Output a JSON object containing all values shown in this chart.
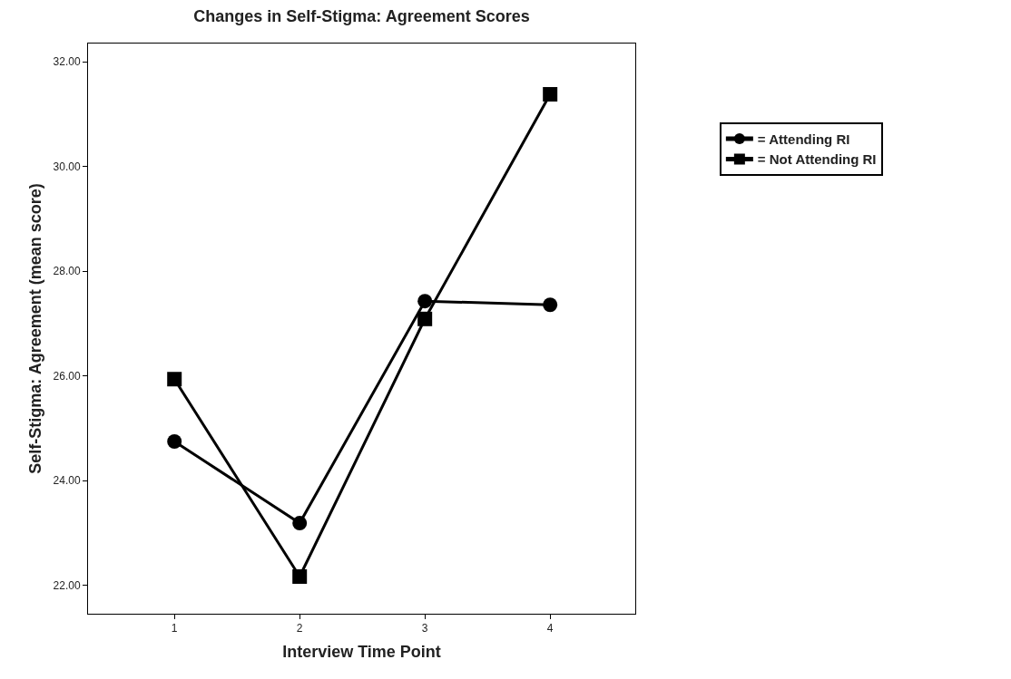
{
  "chart_data": {
    "type": "line",
    "title": "Changes in Self-Stigma: Agreement Scores",
    "xlabel": "Interview Time Point",
    "ylabel": "Self-Stigma: Agreement (mean score)",
    "x": [
      1,
      2,
      3,
      4
    ],
    "series": [
      {
        "name": "= Attending RI",
        "color": "#000000",
        "marker": "circle",
        "values": [
          24.75,
          23.19,
          27.43,
          27.36
        ]
      },
      {
        "name": "= Not Attending RI",
        "color": "#000000",
        "marker": "square",
        "values": [
          25.94,
          22.17,
          27.09,
          31.38
        ]
      }
    ],
    "xlim": [
      0.31,
      4.68
    ],
    "xticks": [
      1,
      2,
      3,
      4
    ],
    "ylim": [
      21.46,
      32.35
    ],
    "yticks": [
      {
        "value": 22,
        "label": "22.00"
      },
      {
        "value": 24,
        "label": "24.00"
      },
      {
        "value": 26,
        "label": "26.00"
      },
      {
        "value": 28,
        "label": "28.00"
      },
      {
        "value": 30,
        "label": "30.00"
      },
      {
        "value": 32,
        "label": "32.00"
      }
    ],
    "legend": "right",
    "line_style": "solid"
  }
}
